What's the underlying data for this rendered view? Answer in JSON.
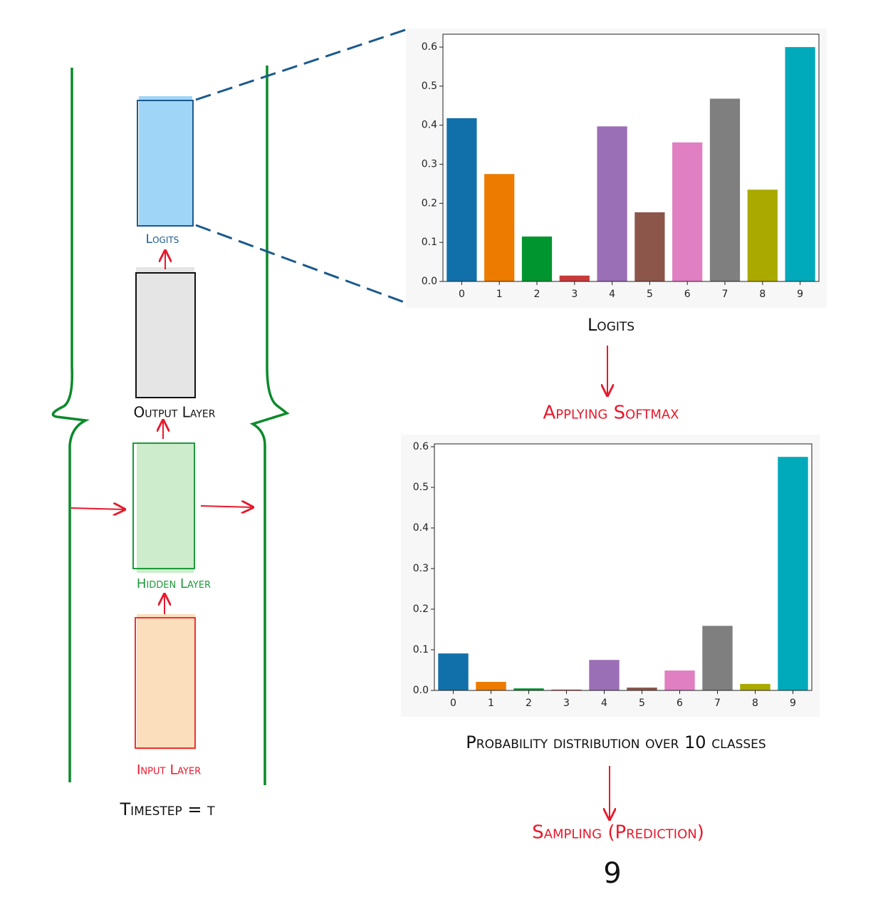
{
  "chart_data": [
    {
      "type": "bar",
      "categories": [
        "0",
        "1",
        "2",
        "3",
        "4",
        "5",
        "6",
        "7",
        "8",
        "9"
      ],
      "values": [
        0.418,
        0.275,
        0.115,
        0.015,
        0.397,
        0.177,
        0.356,
        0.468,
        0.235,
        0.6
      ],
      "colors": [
        "#1170aa",
        "#ec7b00",
        "#00952f",
        "#c83a3a",
        "#9a6fb5",
        "#8c564b",
        "#e07fc2",
        "#7f7f7f",
        "#aaa900",
        "#00aabb"
      ],
      "ylim": [
        0,
        0.633
      ],
      "yticks": [
        {
          "value": 0,
          "label": "0.0"
        },
        0.1,
        0.2,
        0.3,
        0.4,
        0.5,
        0.6
      ]
    },
    {
      "type": "bar",
      "categories": [
        "0",
        "1",
        "2",
        "3",
        "4",
        "5",
        "6",
        "7",
        "8",
        "9"
      ],
      "values": [
        0.091,
        0.021,
        0.005,
        0.002,
        0.075,
        0.007,
        0.049,
        0.159,
        0.016,
        0.575
      ],
      "colors": [
        "#1170aa",
        "#ec7b00",
        "#00952f",
        "#c83a3a",
        "#9a6fb5",
        "#8c564b",
        "#e07fc2",
        "#7f7f7f",
        "#aaa900",
        "#00aabb"
      ],
      "ylim": [
        0,
        0.607
      ],
      "yticks": [
        {
          "value": 0,
          "label": "0.0"
        },
        0.1,
        0.2,
        0.3,
        0.4,
        0.5,
        0.6
      ]
    }
  ],
  "diagram": {
    "logits_small": "Logits",
    "output_layer": "Output Layer",
    "hidden_layer": "Hidden Layer",
    "input_layer": "Input Layer",
    "timestep": "Timestep = t",
    "logits_caption": "Logits",
    "softmax": "Applying Softmax",
    "distribution": "Probability distribution over 10 classes",
    "sampling": "Sampling (Prediction)",
    "prediction": "9"
  }
}
